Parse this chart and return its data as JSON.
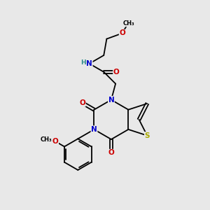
{
  "background_color": "#e8e8e8",
  "atom_colors": {
    "C": "#000000",
    "N": "#0000cc",
    "O": "#cc0000",
    "S": "#aaaa00",
    "H": "#2e8b8b"
  },
  "bond_color": "#000000",
  "figsize": [
    3.0,
    3.0
  ],
  "dpi": 100,
  "lw": 1.3,
  "fs": 7.5
}
